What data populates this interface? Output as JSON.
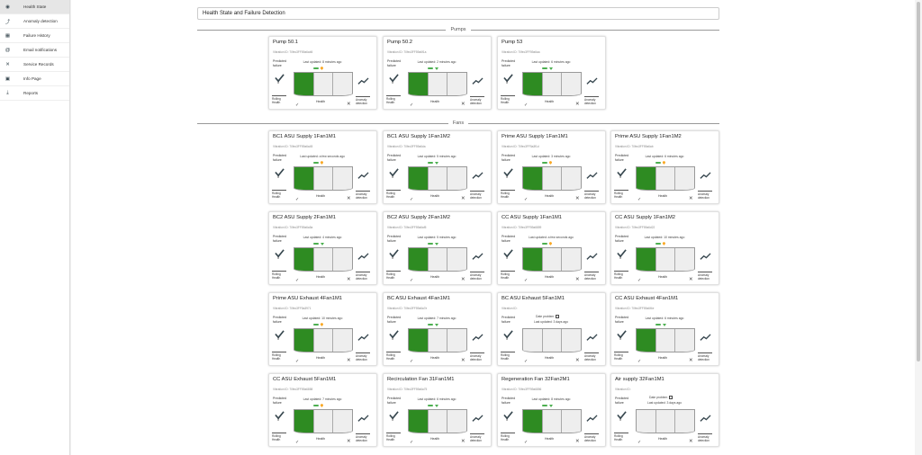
{
  "sidebar": {
    "items": [
      {
        "label": "Health State",
        "icon": "dashboard-icon",
        "glyph": "◉",
        "active": true
      },
      {
        "label": "Anomaly detection",
        "icon": "trend-icon",
        "glyph": "⤴",
        "active": false
      },
      {
        "label": "Failure History",
        "icon": "table-icon",
        "glyph": "▦",
        "active": false
      },
      {
        "label": "Email notifications",
        "icon": "at-icon",
        "glyph": "@",
        "active": false
      },
      {
        "label": "Service Records",
        "icon": "tools-icon",
        "glyph": "✕",
        "active": false
      },
      {
        "label": "Info Page",
        "icon": "info-icon",
        "glyph": "▣",
        "active": false
      },
      {
        "label": "Reports",
        "icon": "download-icon",
        "glyph": "⤓",
        "active": false
      }
    ]
  },
  "page": {
    "title": "Health State and Failure Detection"
  },
  "sections": [
    {
      "label": "Pumps"
    },
    {
      "label": "Fans"
    }
  ],
  "labels": {
    "predicted_failure_1": "Predicted",
    "predicted_failure_2": "failure",
    "zero": "0",
    "rolling_1": "Rolling",
    "rolling_2": "Health",
    "health": "Health",
    "anomaly_1": "Anomaly",
    "anomaly_2": "detection",
    "date_problem": "Date problem"
  },
  "colors": {
    "accent_green": "#2e8b22",
    "indicator_green": "#4caf50",
    "indicator_orange": "#f9a825"
  },
  "cards": [
    {
      "title": "Pump 50.1",
      "vibration": "Vibration ID: 70fec3FF59a6ab5",
      "updated": "Last updated: 8 minutes ago",
      "indicator": "orange",
      "filled": 1
    },
    {
      "title": "Pump 50.2",
      "vibration": "Vibration ID: 70fec3FF59a6f1a",
      "updated": "Last updated: 2 minutes ago",
      "indicator": "green",
      "filled": 1
    },
    {
      "title": "Pump 53",
      "vibration": "Vibration ID: 70fec3FF59a6aa",
      "updated": "Last updated: 6 minutes ago",
      "indicator": "green",
      "filled": 1
    },
    {
      "title": "BC1 ASU Supply 1Fan1M1",
      "vibration": "Vibration ID: 70fec3FF59a6a45",
      "updated": "Last updated: a few seconds ago",
      "indicator": "orange",
      "filled": 1
    },
    {
      "title": "BC1 ASU Supply 1Fan1M2",
      "vibration": "Vibration ID: 70fec3FF59a6da",
      "updated": "Last updated: 5 minutes ago",
      "indicator": "green",
      "filled": 1
    },
    {
      "title": "Prime ASU Supply 1Fan1M1",
      "vibration": "Vibration ID: 70fec3FF5a3f1d",
      "updated": "Last updated: 3 minutes ago",
      "indicator": "orange",
      "filled": 1
    },
    {
      "title": "Prime ASU Supply 1Fan1M2",
      "vibration": "Vibration ID: 70fec3FF59a6ab",
      "updated": "Last updated: 6 minutes ago",
      "indicator": "orange",
      "filled": 1
    },
    {
      "title": "BC2 ASU Supply 2Fan1M1",
      "vibration": "Vibration ID: 70fec3FF59a6a5a",
      "updated": "Last updated: 4 minutes ago",
      "indicator": "green",
      "filled": 1
    },
    {
      "title": "BC2 ASU Supply 2Fan1M2",
      "vibration": "Vibration ID: 70fec3FF59a6af5",
      "updated": "Last updated: 5 minutes ago",
      "indicator": "green",
      "filled": 1
    },
    {
      "title": "CC ASU Supply 1Fan1M1",
      "vibration": "Vibration ID: 70fec3FF59a6859",
      "updated": "Last updated: a few seconds ago",
      "indicator": "orange",
      "filled": 1
    },
    {
      "title": "CC ASU Supply 1Fan1M2",
      "vibration": "Vibration ID: 70fec3FF59a6d22",
      "updated": "Last updated: 10 minutes ago",
      "indicator": "orange",
      "filled": 1
    },
    {
      "title": "Prime ASU Exhaust 4Fan1M1",
      "vibration": "Vibration ID: 70fec3FF5a3971",
      "updated": "Last updated: 10 minutes ago",
      "indicator": "orange",
      "filled": 1
    },
    {
      "title": "BC ASU Exhaust 4Fan1M1",
      "vibration": "Vibration ID: 70fec3FF59a6a7e",
      "updated": "Last updated: 7 minutes ago",
      "indicator": "green",
      "filled": 1
    },
    {
      "title": "BC ASU Exhaust 5Fan1M1",
      "vibration": "Vibration ID:",
      "date_problem": true,
      "updated": "Last updated: 3 days ago",
      "indicator": "none",
      "filled": 0
    },
    {
      "title": "CC ASU Exhaust 4Fan1M1",
      "vibration": "Vibration ID: 70fec3FF59a6f4e",
      "updated": "Last updated: 6 minutes ago",
      "indicator": "green",
      "filled": 1
    },
    {
      "title": "CC ASU Exhaust 5Fan1M1",
      "vibration": "Vibration ID: 70fec3FF59a6858",
      "updated": "Last updated: 7 minutes ago",
      "indicator": "orange",
      "filled": 1
    },
    {
      "title": "Recirculation Fan 31Fan1M1",
      "vibration": "Vibration ID: 70fec3FF59a6a75",
      "updated": "Last updated: 6 minutes ago",
      "indicator": "green",
      "filled": 1
    },
    {
      "title": "Regeneration Fan 32Fan2M1",
      "vibration": "Vibration ID: 70fec3FF59a6856",
      "updated": "Last updated: 8 minutes ago",
      "indicator": "green",
      "filled": 1
    },
    {
      "title": "Air supply 32Fan1M1",
      "vibration": "Vibration ID:",
      "date_problem": true,
      "updated": "Last updated: 3 days ago",
      "indicator": "none",
      "filled": 0
    }
  ]
}
